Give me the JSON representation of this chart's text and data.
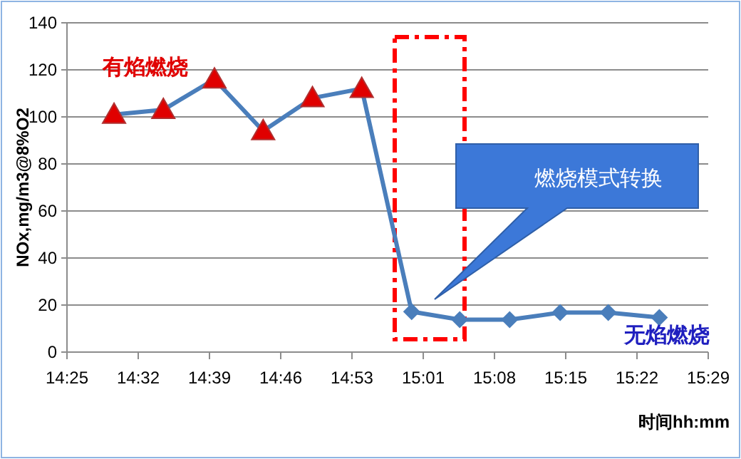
{
  "chart_data": {
    "type": "line",
    "xlabel": "时间hh:mm",
    "ylabel": "NOx,mg/m3@8%O2",
    "xlim": [
      14.4167,
      15.4833
    ],
    "ylim": [
      0,
      140
    ],
    "yticks": [
      0,
      20,
      40,
      60,
      80,
      100,
      120,
      140
    ],
    "xticks": [
      {
        "value": 14.4167,
        "label": "14:25"
      },
      {
        "value": 14.5352,
        "label": "14:32"
      },
      {
        "value": 14.6537,
        "label": "14:39"
      },
      {
        "value": 14.7722,
        "label": "14:46"
      },
      {
        "value": 14.8907,
        "label": "14:53"
      },
      {
        "value": 15.0093,
        "label": "15:01"
      },
      {
        "value": 15.1278,
        "label": "15:08"
      },
      {
        "value": 15.2463,
        "label": "15:15"
      },
      {
        "value": 15.3648,
        "label": "15:22"
      },
      {
        "value": 15.4833,
        "label": "15:29"
      }
    ],
    "grid": "y",
    "line_style": "solid",
    "series": [
      {
        "type": "line",
        "color": "#4a7ebb",
        "x": [
          14.495,
          14.577,
          14.662,
          14.743,
          14.825,
          14.907,
          14.99,
          15.07,
          15.153,
          15.237,
          15.317,
          15.402
        ],
        "values": [
          101,
          103,
          116,
          94,
          108,
          112,
          17.2,
          13.8,
          13.8,
          16.8,
          16.8,
          14.7
        ]
      },
      {
        "type": "scatter",
        "marker": "triangle",
        "color": "#e00000",
        "x": [
          14.495,
          14.577,
          14.662,
          14.743,
          14.825,
          14.907
        ],
        "values": [
          101,
          103,
          116,
          94,
          108,
          112
        ]
      },
      {
        "type": "scatter",
        "marker": "diamond",
        "color": "#4a7ebb",
        "x": [
          14.99,
          15.07,
          15.153,
          15.237,
          15.317,
          15.402
        ],
        "values": [
          17.2,
          13.8,
          13.8,
          16.8,
          16.8,
          14.7
        ]
      }
    ],
    "annotations": [
      "有焰燃烧",
      "无焰燃烧",
      "燃烧模式转换"
    ]
  }
}
